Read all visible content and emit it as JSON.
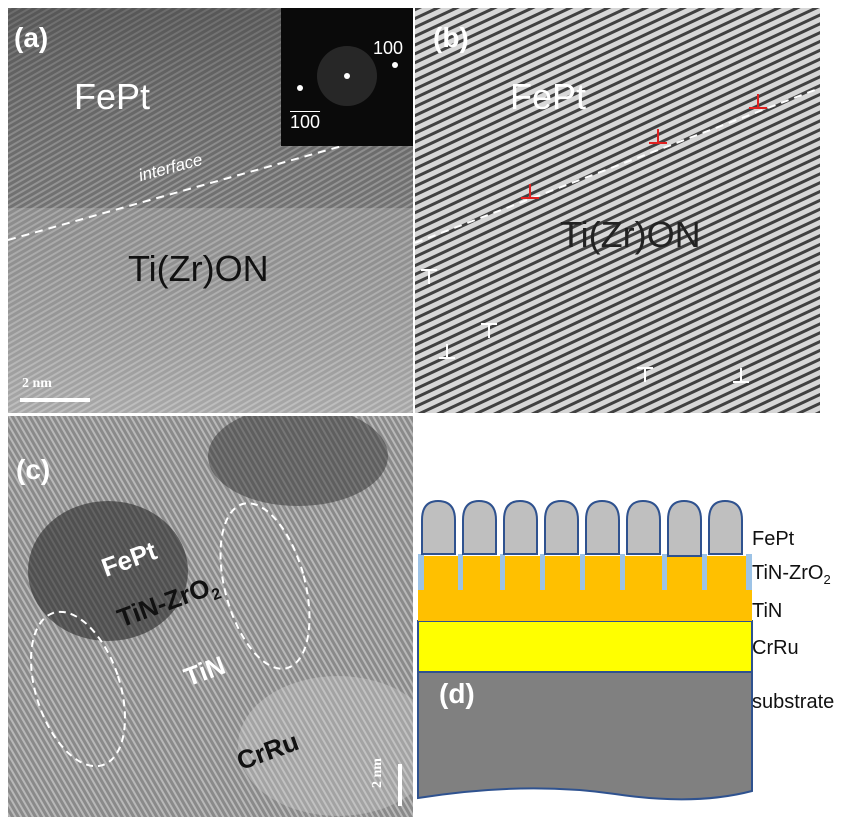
{
  "panel_a": {
    "label": "(a)",
    "fepet": "FePt",
    "interface": "interface",
    "tizr": "Ti(Zr)ON",
    "scale": "2 nm",
    "inset_100": "100",
    "inset_m100": "100"
  },
  "panel_b": {
    "label": "(b)",
    "fepet": "FePt",
    "tizr": "Ti(Zr)ON"
  },
  "panel_c": {
    "label": "(c)",
    "fepet": "FePt",
    "tinzr_main": "TiN-ZrO",
    "tinzr_sub": "2",
    "tin": "TiN",
    "crru": "CrRu",
    "scale": "2 nm"
  },
  "panel_d": {
    "label": "(d)",
    "layers": {
      "fepet": "FePt",
      "tinzr_main": "TiN-ZrO",
      "tinzr_sub": "2",
      "tin": "TiN",
      "crru": "CrRu",
      "substrate": "substrate"
    },
    "colors": {
      "grain": "#bfbfbf",
      "tinzr": "#ffc000",
      "crru": "#ffff00",
      "substrate": "#808080",
      "boundary": "#9dc3e6",
      "outline": "#2f528f"
    }
  }
}
